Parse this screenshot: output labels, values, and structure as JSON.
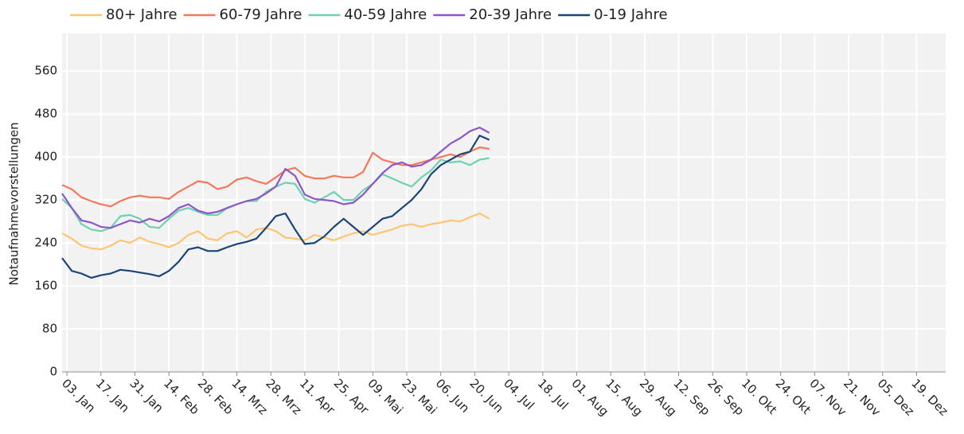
{
  "chart_data": {
    "type": "line",
    "y_label": "Notaufnahmevorstellungen",
    "x": [
      "01-01",
      "01-05",
      "01-09",
      "01-13",
      "01-17",
      "01-21",
      "01-25",
      "01-29",
      "02-02",
      "02-06",
      "02-10",
      "02-14",
      "02-18",
      "02-22",
      "02-26",
      "03-02",
      "03-06",
      "03-10",
      "03-14",
      "03-18",
      "03-22",
      "03-26",
      "03-30",
      "04-03",
      "04-07",
      "04-11",
      "04-15",
      "04-19",
      "04-23",
      "04-27",
      "05-01",
      "05-05",
      "05-09",
      "05-13",
      "05-17",
      "05-21",
      "05-25",
      "05-29",
      "06-02",
      "06-06",
      "06-10",
      "06-14",
      "06-18",
      "06-22",
      "06-26"
    ],
    "xlim": [
      "01-01",
      "12-31"
    ],
    "xticks": [
      {
        "value": "01-03",
        "label": "03. Jan"
      },
      {
        "value": "01-17",
        "label": "17. Jan"
      },
      {
        "value": "01-31",
        "label": "31. Jan"
      },
      {
        "value": "02-14",
        "label": "14. Feb"
      },
      {
        "value": "02-28",
        "label": "28. Feb"
      },
      {
        "value": "03-14",
        "label": "14. Mrz"
      },
      {
        "value": "03-28",
        "label": "28. Mrz"
      },
      {
        "value": "04-11",
        "label": "11. Apr"
      },
      {
        "value": "04-25",
        "label": "25. Apr"
      },
      {
        "value": "05-09",
        "label": "09. Mai"
      },
      {
        "value": "05-23",
        "label": "23. Mai"
      },
      {
        "value": "06-06",
        "label": "06. Jun"
      },
      {
        "value": "06-20",
        "label": "20. Jun"
      },
      {
        "value": "07-04",
        "label": "04. Jul"
      },
      {
        "value": "07-18",
        "label": "18. Jul"
      },
      {
        "value": "08-01",
        "label": "01. Aug"
      },
      {
        "value": "08-15",
        "label": "15. Aug"
      },
      {
        "value": "08-29",
        "label": "29. Aug"
      },
      {
        "value": "09-12",
        "label": "12. Sep"
      },
      {
        "value": "09-26",
        "label": "26. Sep"
      },
      {
        "value": "10-10",
        "label": "10. Okt"
      },
      {
        "value": "10-24",
        "label": "24. Okt"
      },
      {
        "value": "11-07",
        "label": "07. Nov"
      },
      {
        "value": "11-21",
        "label": "21. Nov"
      },
      {
        "value": "12-05",
        "label": "05. Dez"
      },
      {
        "value": "12-19",
        "label": "19. Dez"
      }
    ],
    "ylim": [
      0,
      630
    ],
    "yticks": [
      0,
      80,
      160,
      240,
      320,
      400,
      480,
      560
    ],
    "grid": true,
    "series": [
      {
        "name": "80+ Jahre",
        "color": "#fdc56f",
        "values": [
          258,
          248,
          235,
          230,
          228,
          235,
          245,
          240,
          250,
          242,
          238,
          232,
          240,
          255,
          262,
          248,
          245,
          258,
          262,
          250,
          265,
          268,
          262,
          250,
          248,
          245,
          255,
          250,
          245,
          252,
          258,
          262,
          255,
          260,
          265,
          272,
          275,
          270,
          275,
          278,
          282,
          280,
          288,
          295,
          285
        ]
      },
      {
        "name": "60-79 Jahre",
        "color": "#f4785c",
        "values": [
          348,
          340,
          325,
          318,
          312,
          308,
          318,
          325,
          328,
          325,
          325,
          322,
          335,
          345,
          355,
          352,
          340,
          345,
          358,
          362,
          355,
          350,
          362,
          375,
          380,
          365,
          360,
          360,
          365,
          362,
          362,
          372,
          408,
          395,
          390,
          385,
          385,
          390,
          395,
          400,
          405,
          400,
          410,
          418,
          415
        ]
      },
      {
        "name": "40-59 Jahre",
        "color": "#6fd1b3",
        "values": [
          322,
          305,
          275,
          265,
          262,
          268,
          290,
          292,
          285,
          270,
          268,
          285,
          300,
          305,
          298,
          292,
          292,
          305,
          312,
          318,
          318,
          335,
          345,
          352,
          350,
          322,
          315,
          325,
          335,
          320,
          320,
          338,
          350,
          368,
          360,
          352,
          345,
          362,
          375,
          395,
          390,
          392,
          385,
          395,
          398
        ]
      },
      {
        "name": "20-39 Jahre",
        "color": "#8d57c6",
        "values": [
          332,
          305,
          282,
          278,
          270,
          268,
          275,
          282,
          278,
          285,
          280,
          290,
          305,
          312,
          300,
          295,
          298,
          305,
          312,
          318,
          322,
          332,
          345,
          378,
          365,
          330,
          322,
          320,
          318,
          312,
          315,
          330,
          350,
          370,
          385,
          390,
          382,
          385,
          395,
          410,
          425,
          435,
          448,
          455,
          445
        ]
      },
      {
        "name": "0-19 Jahre",
        "color": "#1b4579",
        "values": [
          212,
          188,
          183,
          175,
          180,
          183,
          190,
          188,
          185,
          182,
          178,
          188,
          205,
          228,
          232,
          225,
          225,
          232,
          238,
          242,
          248,
          268,
          290,
          295,
          265,
          238,
          240,
          252,
          270,
          285,
          270,
          255,
          270,
          285,
          290,
          305,
          320,
          340,
          368,
          385,
          395,
          405,
          410,
          440,
          432
        ]
      }
    ]
  }
}
